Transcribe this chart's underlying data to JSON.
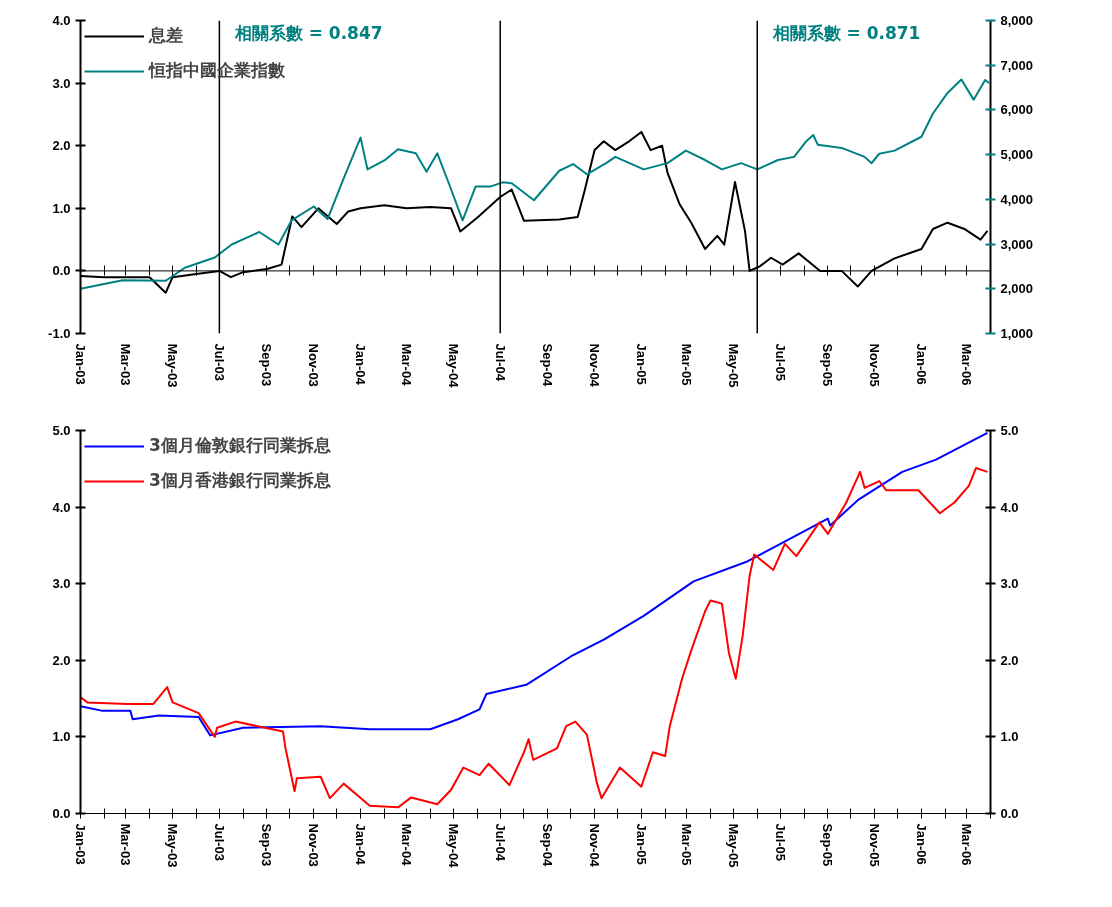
{
  "chart_data": [
    {
      "type": "line",
      "xlim": [
        "2003-01",
        "2006-04"
      ],
      "xticks": [
        {
          "value": "2003-01",
          "label": "Jan-03"
        },
        {
          "value": "2003-02",
          "label": null
        },
        {
          "value": "2003-03",
          "label": "Mar-03"
        },
        {
          "value": "2003-04",
          "label": null
        },
        {
          "value": "2003-05",
          "label": "May-03"
        },
        {
          "value": "2003-06",
          "label": null
        },
        {
          "value": "2003-07",
          "label": "Jul-03"
        },
        {
          "value": "2003-08",
          "label": null
        },
        {
          "value": "2003-09",
          "label": "Sep-03"
        },
        {
          "value": "2003-10",
          "label": null
        },
        {
          "value": "2003-11",
          "label": "Nov-03"
        },
        {
          "value": "2003-12",
          "label": null
        },
        {
          "value": "2004-01",
          "label": "Jan-04"
        },
        {
          "value": "2004-02",
          "label": null
        },
        {
          "value": "2004-03",
          "label": "Mar-04"
        },
        {
          "value": "2004-04",
          "label": null
        },
        {
          "value": "2004-05",
          "label": "May-04"
        },
        {
          "value": "2004-06",
          "label": null
        },
        {
          "value": "2004-07",
          "label": "Jul-04"
        },
        {
          "value": "2004-08",
          "label": null
        },
        {
          "value": "2004-09",
          "label": "Sep-04"
        },
        {
          "value": "2004-10",
          "label": null
        },
        {
          "value": "2004-11",
          "label": "Nov-04"
        },
        {
          "value": "2004-12",
          "label": null
        },
        {
          "value": "2005-01",
          "label": "Jan-05"
        },
        {
          "value": "2005-02",
          "label": null
        },
        {
          "value": "2005-03",
          "label": "Mar-05"
        },
        {
          "value": "2005-04",
          "label": null
        },
        {
          "value": "2005-05",
          "label": "May-05"
        },
        {
          "value": "2005-06",
          "label": null
        },
        {
          "value": "2005-07",
          "label": "Jul-05"
        },
        {
          "value": "2005-08",
          "label": null
        },
        {
          "value": "2005-09",
          "label": "Sep-05"
        },
        {
          "value": "2005-10",
          "label": null
        },
        {
          "value": "2005-11",
          "label": "Nov-05"
        },
        {
          "value": "2005-12",
          "label": null
        },
        {
          "value": "2006-01",
          "label": "Jan-06"
        },
        {
          "value": "2006-02",
          "label": null
        },
        {
          "value": "2006-03",
          "label": "Mar-06"
        },
        {
          "value": "2006-04",
          "label": null
        }
      ],
      "ylim": [
        -1,
        4
      ],
      "yticks": [
        {
          "value": -1,
          "label": "-1.0"
        },
        {
          "value": 0,
          "label": "0.0"
        },
        {
          "value": 1,
          "label": "1.0"
        },
        {
          "value": 2,
          "label": "2.0"
        },
        {
          "value": 3,
          "label": "3.0"
        },
        {
          "value": 4,
          "label": "4.0"
        }
      ],
      "y2lim": [
        1000,
        8000
      ],
      "y2ticks": [
        {
          "value": 1000,
          "label": "1,000"
        },
        {
          "value": 2000,
          "label": "2,000"
        },
        {
          "value": 3000,
          "label": "3,000"
        },
        {
          "value": 4000,
          "label": "4,000"
        },
        {
          "value": 5000,
          "label": "5,000"
        },
        {
          "value": 6000,
          "label": "6,000"
        },
        {
          "value": 7000,
          "label": "7,000"
        },
        {
          "value": 8000,
          "label": "8,000"
        }
      ],
      "legend": "top left",
      "ref_lines": [
        {
          "axis": "x",
          "value": "2003-07-01",
          "color": "#000000"
        },
        {
          "axis": "x",
          "value": "2004-07-01",
          "color": "#000000"
        },
        {
          "axis": "x",
          "value": "2005-06-01",
          "color": "#000000"
        },
        {
          "axis": "y",
          "value": 0,
          "color": "#000000"
        }
      ],
      "annotations": [
        "相關系數 = 0.847",
        "相關系數 = 0.871"
      ],
      "series": [
        {
          "name": "息差",
          "color": "#000000",
          "x": [
            "2003-01-01",
            "2003-02-01",
            "2003-03-01",
            "2003-04-01",
            "2003-04-22",
            "2003-05-01",
            "2003-06-01",
            "2003-07-01",
            "2003-07-16",
            "2003-08-01",
            "2003-09-01",
            "2003-09-20",
            "2003-10-04",
            "2003-10-16",
            "2003-11-07",
            "2003-12-01",
            "2003-12-16",
            "2004-01-01",
            "2004-02-01",
            "2004-03-01",
            "2004-04-01",
            "2004-04-28",
            "2004-05-10",
            "2004-06-01",
            "2004-07-01",
            "2004-07-16",
            "2004-08-01",
            "2004-09-16",
            "2004-10-10",
            "2004-10-19",
            "2004-11-01",
            "2004-11-13",
            "2004-11-28",
            "2004-12-16",
            "2005-01-01",
            "2005-01-13",
            "2005-01-28",
            "2005-02-04",
            "2005-02-20",
            "2005-03-07",
            "2005-03-25",
            "2005-04-10",
            "2005-04-19",
            "2005-05-03",
            "2005-05-16",
            "2005-05-22",
            "2005-06-04",
            "2005-06-19",
            "2005-07-04",
            "2005-07-25",
            "2005-08-22",
            "2005-09-19",
            "2005-10-10",
            "2005-10-28",
            "2005-11-27",
            "2006-01-01",
            "2006-01-16",
            "2006-02-04",
            "2006-02-26",
            "2006-03-19",
            "2006-03-28"
          ],
          "values": [
            -0.08,
            -0.1,
            -0.1,
            -0.1,
            -0.35,
            -0.1,
            -0.05,
            0.0,
            -0.1,
            -0.02,
            0.03,
            0.1,
            0.87,
            0.7,
            1.0,
            0.75,
            0.95,
            1.0,
            1.05,
            1.0,
            1.02,
            1.0,
            0.63,
            0.85,
            1.18,
            1.3,
            0.8,
            0.82,
            0.86,
            1.28,
            1.93,
            2.07,
            1.93,
            2.07,
            2.22,
            1.93,
            2.0,
            1.57,
            1.06,
            0.77,
            0.35,
            0.56,
            0.42,
            1.42,
            0.64,
            0.0,
            0.07,
            0.21,
            0.1,
            0.28,
            0.0,
            0.0,
            -0.25,
            0.0,
            0.2,
            0.35,
            0.67,
            0.77,
            0.67,
            0.5,
            0.64
          ]
        },
        {
          "name": "恒指中國企業指數",
          "color": "#008080",
          "axis": "y2",
          "x": [
            "2003-01-01",
            "2003-02-25",
            "2003-04-22",
            "2003-05-17",
            "2003-06-25",
            "2003-07-17",
            "2003-08-22",
            "2003-09-16",
            "2003-10-03",
            "2003-11-01",
            "2003-11-19",
            "2003-12-10",
            "2004-01-01",
            "2004-01-10",
            "2004-02-01",
            "2004-02-19",
            "2004-03-13",
            "2004-03-27",
            "2004-04-10",
            "2004-04-25",
            "2004-05-13",
            "2004-05-30",
            "2004-06-19",
            "2004-07-04",
            "2004-07-16",
            "2004-08-14",
            "2004-09-16",
            "2004-10-04",
            "2004-10-22",
            "2004-11-16",
            "2004-11-28",
            "2005-01-04",
            "2005-02-04",
            "2005-02-28",
            "2005-03-25",
            "2005-04-16",
            "2005-05-11",
            "2005-06-01",
            "2005-06-28",
            "2005-07-19",
            "2005-08-04",
            "2005-08-13",
            "2005-08-19",
            "2005-09-19",
            "2005-10-19",
            "2005-10-28",
            "2005-11-07",
            "2005-11-27",
            "2006-01-01",
            "2006-01-16",
            "2006-02-04",
            "2006-02-22",
            "2006-03-10",
            "2006-03-25",
            "2006-03-30"
          ],
          "values": [
            2000,
            2190,
            2180,
            2470,
            2700,
            2990,
            3270,
            2990,
            3530,
            3840,
            3560,
            4470,
            5380,
            4670,
            4870,
            5120,
            5030,
            4620,
            5030,
            4360,
            3530,
            4290,
            4290,
            4380,
            4360,
            3980,
            4640,
            4790,
            4560,
            4810,
            4950,
            4670,
            4810,
            5090,
            4880,
            4670,
            4810,
            4670,
            4880,
            4950,
            5300,
            5440,
            5220,
            5150,
            4950,
            4810,
            5020,
            5090,
            5400,
            5920,
            6380,
            6680,
            6230,
            6670,
            6600
          ]
        }
      ]
    },
    {
      "type": "line",
      "xlim": [
        "2003-01",
        "2006-04"
      ],
      "xticks": [
        {
          "value": "2003-01",
          "label": "Jan-03"
        },
        {
          "value": "2003-02",
          "label": null
        },
        {
          "value": "2003-03",
          "label": "Mar-03"
        },
        {
          "value": "2003-04",
          "label": null
        },
        {
          "value": "2003-05",
          "label": "May-03"
        },
        {
          "value": "2003-06",
          "label": null
        },
        {
          "value": "2003-07",
          "label": "Jul-03"
        },
        {
          "value": "2003-08",
          "label": null
        },
        {
          "value": "2003-09",
          "label": "Sep-03"
        },
        {
          "value": "2003-10",
          "label": null
        },
        {
          "value": "2003-11",
          "label": "Nov-03"
        },
        {
          "value": "2003-12",
          "label": null
        },
        {
          "value": "2004-01",
          "label": "Jan-04"
        },
        {
          "value": "2004-02",
          "label": null
        },
        {
          "value": "2004-03",
          "label": "Mar-04"
        },
        {
          "value": "2004-04",
          "label": null
        },
        {
          "value": "2004-05",
          "label": "May-04"
        },
        {
          "value": "2004-06",
          "label": null
        },
        {
          "value": "2004-07",
          "label": "Jul-04"
        },
        {
          "value": "2004-08",
          "label": null
        },
        {
          "value": "2004-09",
          "label": "Sep-04"
        },
        {
          "value": "2004-10",
          "label": null
        },
        {
          "value": "2004-11",
          "label": "Nov-04"
        },
        {
          "value": "2004-12",
          "label": null
        },
        {
          "value": "2005-01",
          "label": "Jan-05"
        },
        {
          "value": "2005-02",
          "label": null
        },
        {
          "value": "2005-03",
          "label": "Mar-05"
        },
        {
          "value": "2005-04",
          "label": null
        },
        {
          "value": "2005-05",
          "label": "May-05"
        },
        {
          "value": "2005-06",
          "label": null
        },
        {
          "value": "2005-07",
          "label": "Jul-05"
        },
        {
          "value": "2005-08",
          "label": null
        },
        {
          "value": "2005-09",
          "label": "Sep-05"
        },
        {
          "value": "2005-10",
          "label": null
        },
        {
          "value": "2005-11",
          "label": "Nov-05"
        },
        {
          "value": "2005-12",
          "label": null
        },
        {
          "value": "2006-01",
          "label": "Jan-06"
        },
        {
          "value": "2006-02",
          "label": null
        },
        {
          "value": "2006-03",
          "label": "Mar-06"
        },
        {
          "value": "2006-04",
          "label": null
        }
      ],
      "ylim": [
        0,
        5
      ],
      "yticks": [
        {
          "value": 0,
          "label": "0.0"
        },
        {
          "value": 1,
          "label": "1.0"
        },
        {
          "value": 2,
          "label": "2.0"
        },
        {
          "value": 3,
          "label": "3.0"
        },
        {
          "value": 4,
          "label": "4.0"
        },
        {
          "value": 5,
          "label": "5.0"
        }
      ],
      "y2lim": [
        0,
        5
      ],
      "y2ticks": [
        {
          "value": 0,
          "label": "0.0"
        },
        {
          "value": 1,
          "label": "1.0"
        },
        {
          "value": 2,
          "label": "2.0"
        },
        {
          "value": 3,
          "label": "3.0"
        },
        {
          "value": 4,
          "label": "4.0"
        },
        {
          "value": 5,
          "label": "5.0"
        }
      ],
      "legend": "top left",
      "series": [
        {
          "name": "3個月倫敦銀行同業拆息",
          "color": "#0000ff",
          "x": [
            "2003-01-01",
            "2003-01-30",
            "2003-03-07",
            "2003-03-10",
            "2003-04-13",
            "2003-06-04",
            "2003-06-19",
            "2003-08-01",
            "2003-11-10",
            "2004-01-13",
            "2004-04-01",
            "2004-05-07",
            "2004-06-04",
            "2004-06-13",
            "2004-08-04",
            "2004-10-01",
            "2004-11-13",
            "2005-01-04",
            "2005-03-10",
            "2005-05-19",
            "2005-07-22",
            "2005-09-01",
            "2005-09-04",
            "2005-10-10",
            "2005-12-07",
            "2006-01-20",
            "2006-03-28"
          ],
          "values": [
            1.4,
            1.34,
            1.34,
            1.23,
            1.28,
            1.26,
            1.02,
            1.12,
            1.14,
            1.1,
            1.1,
            1.23,
            1.36,
            1.56,
            1.68,
            2.05,
            2.27,
            2.58,
            3.03,
            3.29,
            3.63,
            3.85,
            3.76,
            4.09,
            4.46,
            4.62,
            4.97
          ]
        },
        {
          "name": "3個月香港銀行同業拆息",
          "color": "#ff0000",
          "x": [
            "2003-01-01",
            "2003-01-10",
            "2003-03-03",
            "2003-04-06",
            "2003-04-24",
            "2003-05-01",
            "2003-06-04",
            "2003-06-25",
            "2003-06-28",
            "2003-07-22",
            "2003-09-22",
            "2003-09-25",
            "2003-10-07",
            "2003-10-10",
            "2003-11-10",
            "2003-11-22",
            "2003-12-10",
            "2004-01-13",
            "2004-02-19",
            "2004-03-07",
            "2004-04-10",
            "2004-04-28",
            "2004-05-14",
            "2004-06-04",
            "2004-06-16",
            "2004-07-13",
            "2004-08-01",
            "2004-08-07",
            "2004-08-13",
            "2004-09-13",
            "2004-09-25",
            "2004-10-07",
            "2004-10-22",
            "2004-11-04",
            "2004-11-10",
            "2004-12-04",
            "2005-01-01",
            "2005-01-16",
            "2005-02-01",
            "2005-02-07",
            "2005-02-23",
            "2005-03-07",
            "2005-03-25",
            "2005-04-01",
            "2005-04-16",
            "2005-04-25",
            "2005-05-04",
            "2005-05-13",
            "2005-05-22",
            "2005-05-28",
            "2005-06-22",
            "2005-07-07",
            "2005-07-22",
            "2005-08-21",
            "2005-09-01",
            "2005-09-25",
            "2005-10-13",
            "2005-10-19",
            "2005-11-07",
            "2005-11-16",
            "2005-12-28",
            "2006-01-25",
            "2006-02-13",
            "2006-03-04",
            "2006-03-13",
            "2006-03-28"
          ],
          "values": [
            1.52,
            1.45,
            1.43,
            1.43,
            1.65,
            1.45,
            1.31,
            1.0,
            1.12,
            1.2,
            1.07,
            0.86,
            0.29,
            0.46,
            0.48,
            0.2,
            0.39,
            0.1,
            0.08,
            0.21,
            0.12,
            0.31,
            0.6,
            0.5,
            0.65,
            0.37,
            0.8,
            0.97,
            0.7,
            0.85,
            1.14,
            1.2,
            1.03,
            0.4,
            0.2,
            0.6,
            0.35,
            0.8,
            0.75,
            1.14,
            1.76,
            2.13,
            2.64,
            2.78,
            2.74,
            2.1,
            1.76,
            2.32,
            3.1,
            3.38,
            3.18,
            3.52,
            3.36,
            3.8,
            3.65,
            4.06,
            4.46,
            4.25,
            4.34,
            4.22,
            4.22,
            3.92,
            4.06,
            4.28,
            4.51,
            4.46
          ]
        }
      ]
    }
  ]
}
